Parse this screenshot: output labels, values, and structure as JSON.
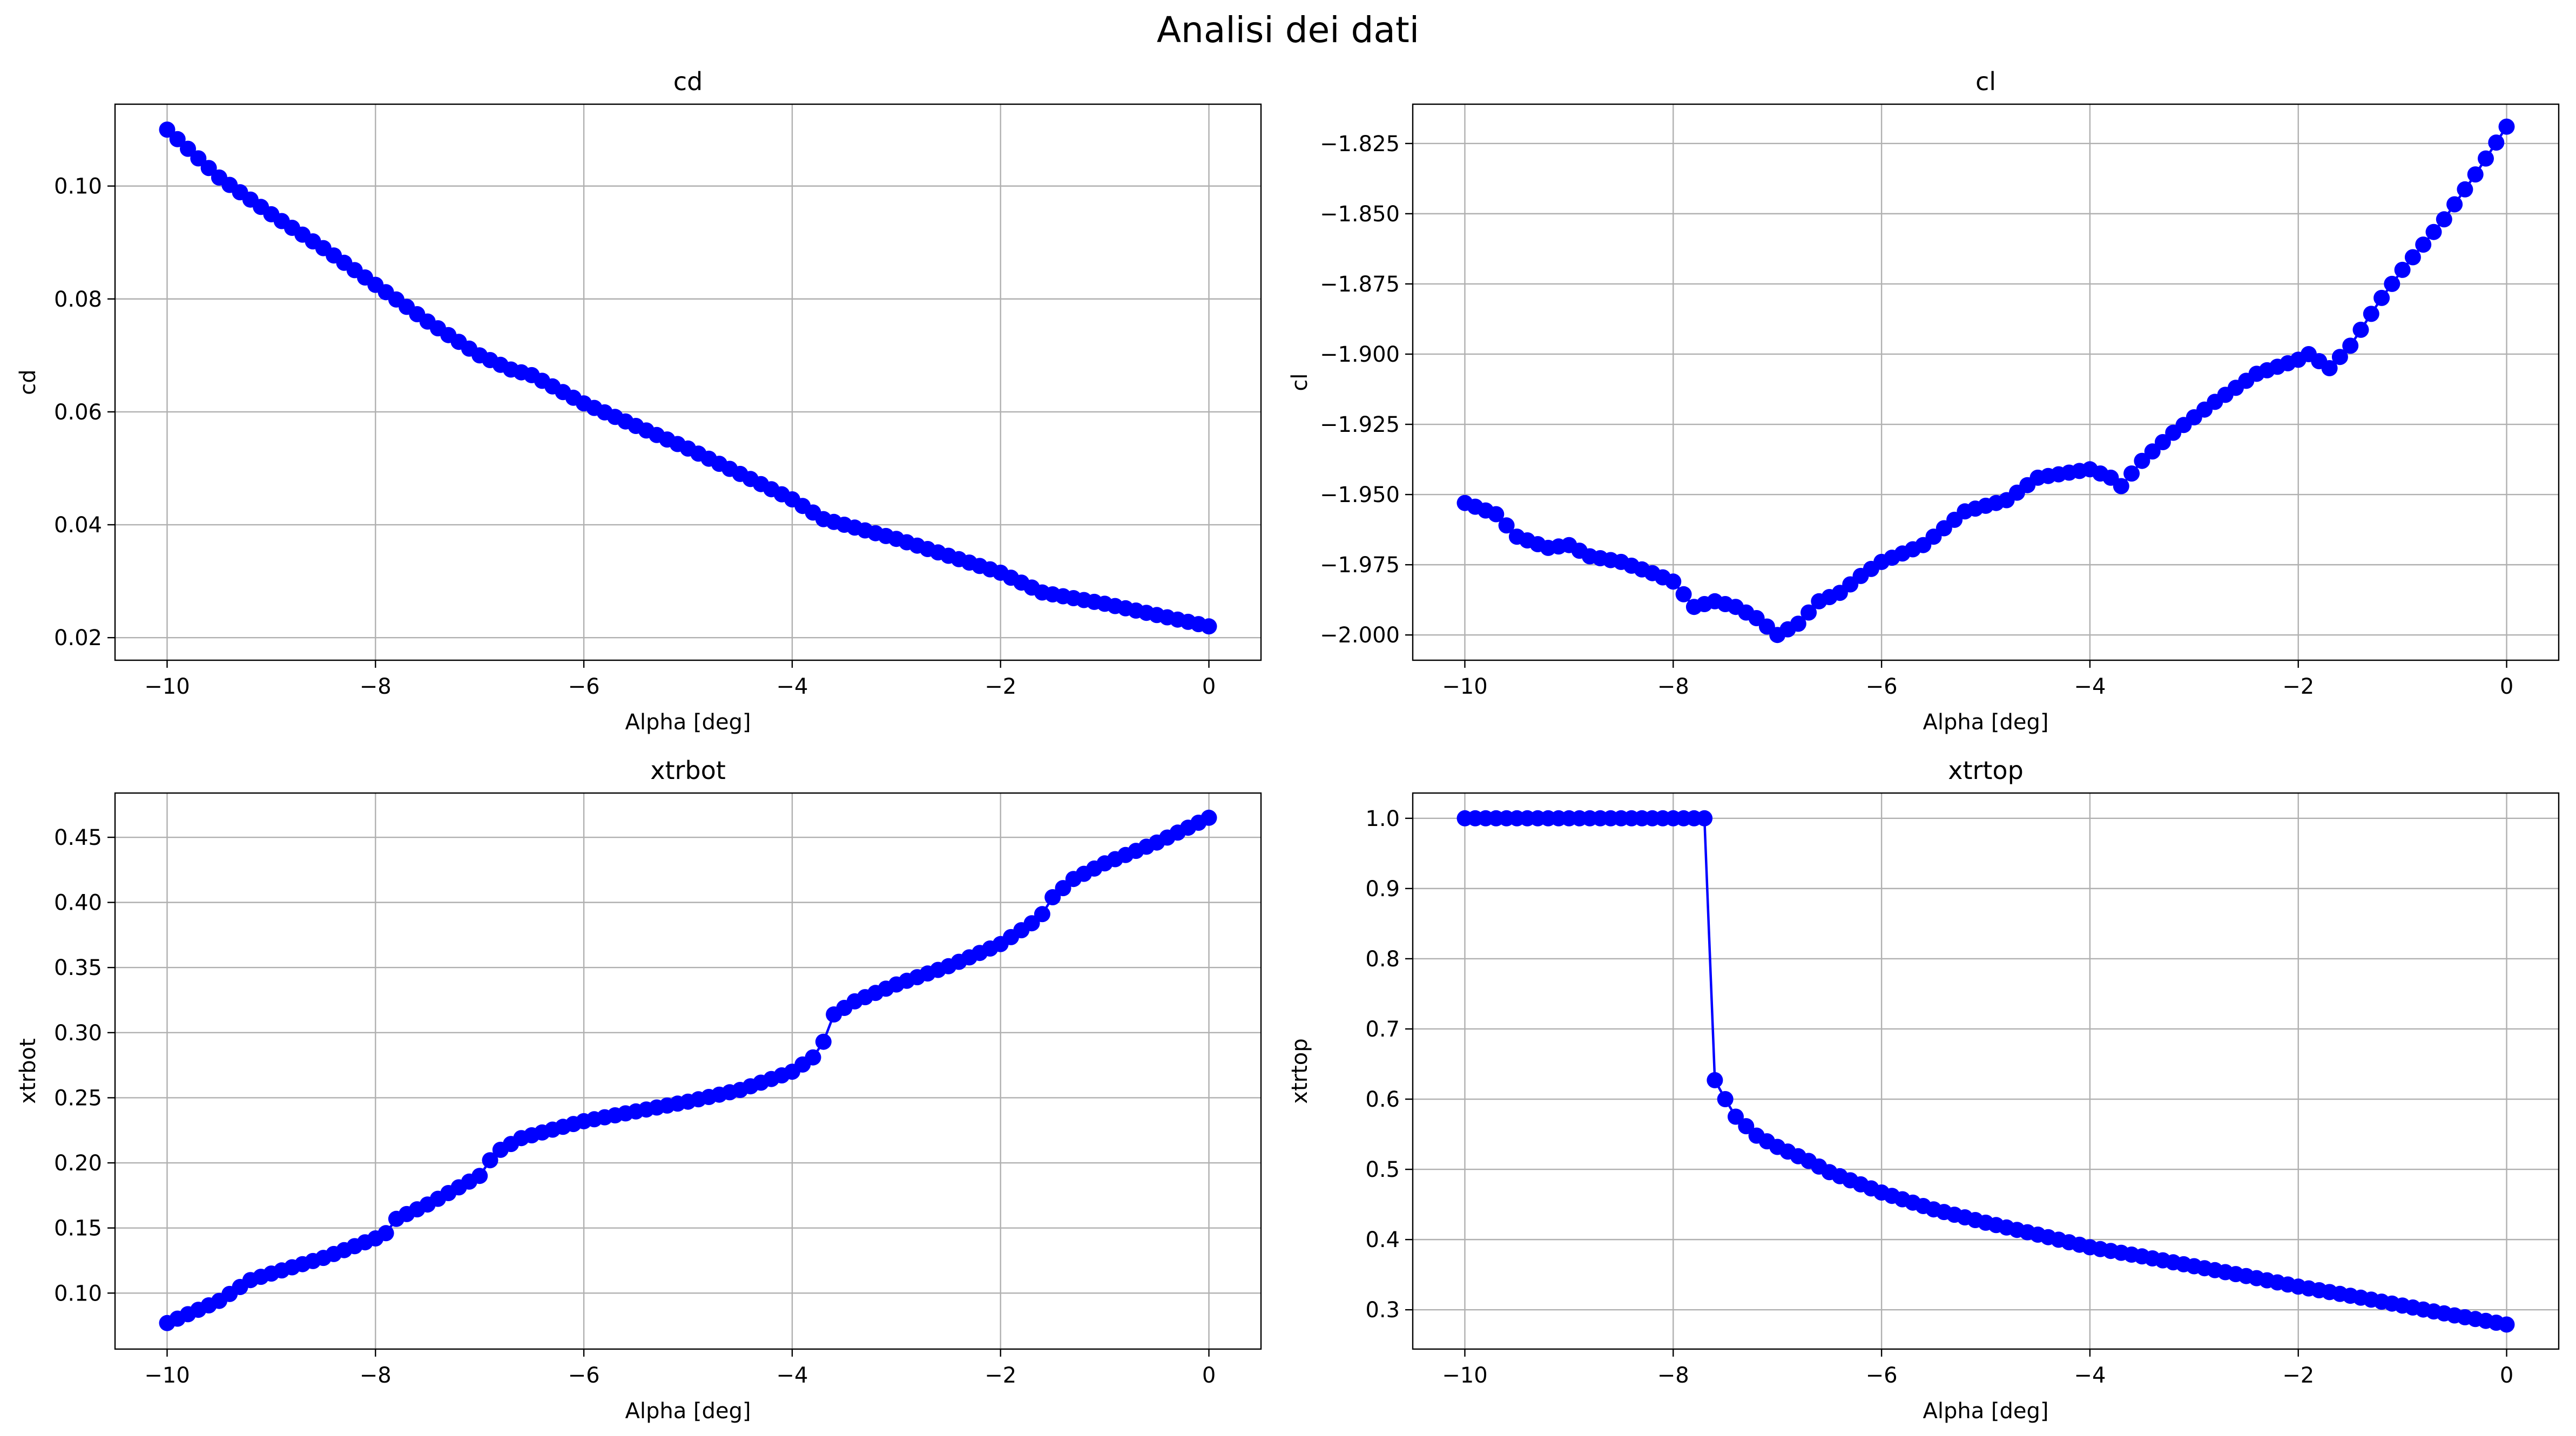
{
  "figure_title": "Analisi dei dati",
  "colors": {
    "series": "#0000ff",
    "grid": "#b0b0b0",
    "axes": "#000000"
  },
  "chart_data": [
    {
      "type": "line",
      "title": "cd",
      "xlabel": "Alpha [deg]",
      "ylabel": "cd",
      "grid": true,
      "marker": "circle",
      "xlim": [
        -10.5,
        0.5
      ],
      "ylim": [
        0.016,
        0.1145
      ],
      "x_ticks": [
        -10,
        -8,
        -6,
        -4,
        -2,
        0
      ],
      "y_ticks": [
        0.02,
        0.04,
        0.06,
        0.08,
        0.1
      ],
      "x_tick_labels": [
        "−10",
        "−8",
        "−6",
        "−4",
        "−2",
        "0"
      ],
      "y_tick_labels": [
        "0.02",
        "0.04",
        "0.06",
        "0.08",
        "0.10"
      ],
      "anchors": [
        [
          -10,
          0.11
        ],
        [
          -9.5,
          0.1015
        ],
        [
          -9,
          0.095
        ],
        [
          -8.5,
          0.089
        ],
        [
          -8,
          0.0825
        ],
        [
          -7.5,
          0.076
        ],
        [
          -7,
          0.07
        ],
        [
          -6.7,
          0.0675
        ],
        [
          -6.5,
          0.0665
        ],
        [
          -6,
          0.0615
        ],
        [
          -5.5,
          0.0575
        ],
        [
          -5,
          0.0535
        ],
        [
          -4.5,
          0.049
        ],
        [
          -4,
          0.0445
        ],
        [
          -3.7,
          0.041
        ],
        [
          -3,
          0.0375
        ],
        [
          -2.5,
          0.0345
        ],
        [
          -2,
          0.0315
        ],
        [
          -1.6,
          0.028
        ],
        [
          -1,
          0.026
        ],
        [
          -0.5,
          0.024
        ],
        [
          0,
          0.022
        ]
      ]
    },
    {
      "type": "line",
      "title": "cl",
      "xlabel": "Alpha [deg]",
      "ylabel": "cl",
      "grid": true,
      "marker": "circle",
      "xlim": [
        -10.5,
        0.5
      ],
      "ylim": [
        -2.009,
        -1.811
      ],
      "x_ticks": [
        -10,
        -8,
        -6,
        -4,
        -2,
        0
      ],
      "y_ticks": [
        -2.0,
        -1.975,
        -1.95,
        -1.925,
        -1.9,
        -1.875,
        -1.85,
        -1.825
      ],
      "x_tick_labels": [
        "−10",
        "−8",
        "−6",
        "−4",
        "−2",
        "0"
      ],
      "y_tick_labels": [
        "−2.000",
        "−1.975",
        "−1.950",
        "−1.925",
        "−1.900",
        "−1.875",
        "−1.850",
        "−1.825"
      ],
      "anchors": [
        [
          -10,
          -1.953
        ],
        [
          -9.7,
          -1.957
        ],
        [
          -9.5,
          -1.965
        ],
        [
          -9.2,
          -1.969
        ],
        [
          -9.0,
          -1.968
        ],
        [
          -8.8,
          -1.972
        ],
        [
          -8.5,
          -1.974
        ],
        [
          -8.2,
          -1.978
        ],
        [
          -8.0,
          -1.981
        ],
        [
          -7.8,
          -1.99
        ],
        [
          -7.6,
          -1.988
        ],
        [
          -7.4,
          -1.99
        ],
        [
          -7.2,
          -1.994
        ],
        [
          -7.0,
          -2.0
        ],
        [
          -6.8,
          -1.996
        ],
        [
          -6.6,
          -1.988
        ],
        [
          -6.4,
          -1.985
        ],
        [
          -6.2,
          -1.979
        ],
        [
          -6.0,
          -1.974
        ],
        [
          -5.6,
          -1.968
        ],
        [
          -5.2,
          -1.956
        ],
        [
          -4.8,
          -1.952
        ],
        [
          -4.5,
          -1.944
        ],
        [
          -4.0,
          -1.941
        ],
        [
          -3.8,
          -1.944
        ],
        [
          -3.7,
          -1.947
        ],
        [
          -3.5,
          -1.938
        ],
        [
          -3.2,
          -1.928
        ],
        [
          -2.8,
          -1.917
        ],
        [
          -2.4,
          -1.907
        ],
        [
          -2.0,
          -1.902
        ],
        [
          -1.9,
          -1.9
        ],
        [
          -1.7,
          -1.905
        ],
        [
          -1.5,
          -1.897
        ],
        [
          -1.2,
          -1.88
        ],
        [
          -1.0,
          -1.87
        ],
        [
          -0.6,
          -1.852
        ],
        [
          -0.3,
          -1.836
        ],
        [
          0.0,
          -1.819
        ]
      ]
    },
    {
      "type": "line",
      "title": "xtrbot",
      "xlabel": "Alpha [deg]",
      "ylabel": "xtrbot",
      "grid": true,
      "marker": "circle",
      "xlim": [
        -10.5,
        0.5
      ],
      "ylim": [
        0.057,
        0.484
      ],
      "x_ticks": [
        -10,
        -8,
        -6,
        -4,
        -2,
        0
      ],
      "y_ticks": [
        0.1,
        0.15,
        0.2,
        0.25,
        0.3,
        0.35,
        0.4,
        0.45
      ],
      "x_tick_labels": [
        "−10",
        "−8",
        "−6",
        "−4",
        "−2",
        "0"
      ],
      "y_tick_labels": [
        "0.10",
        "0.15",
        "0.20",
        "0.25",
        "0.30",
        "0.35",
        "0.40",
        "0.45"
      ],
      "anchors": [
        [
          -10,
          0.077
        ],
        [
          -9.5,
          0.094
        ],
        [
          -9.2,
          0.11
        ],
        [
          -9,
          0.115
        ],
        [
          -8.5,
          0.127
        ],
        [
          -8,
          0.142
        ],
        [
          -7.9,
          0.146
        ],
        [
          -7.8,
          0.157
        ],
        [
          -7.5,
          0.168
        ],
        [
          -7,
          0.19
        ],
        [
          -6.9,
          0.202
        ],
        [
          -6.8,
          0.21
        ],
        [
          -6.6,
          0.219
        ],
        [
          -6,
          0.232
        ],
        [
          -5,
          0.247
        ],
        [
          -4.5,
          0.256
        ],
        [
          -4,
          0.27
        ],
        [
          -3.8,
          0.281
        ],
        [
          -3.7,
          0.293
        ],
        [
          -3.6,
          0.314
        ],
        [
          -3.4,
          0.324
        ],
        [
          -3,
          0.337
        ],
        [
          -2.5,
          0.351
        ],
        [
          -2,
          0.368
        ],
        [
          -1.7,
          0.384
        ],
        [
          -1.6,
          0.391
        ],
        [
          -1.5,
          0.404
        ],
        [
          -1.3,
          0.418
        ],
        [
          -1,
          0.43
        ],
        [
          -0.5,
          0.446
        ],
        [
          0,
          0.465
        ]
      ]
    },
    {
      "type": "line",
      "title": "xtrtop",
      "xlabel": "Alpha [deg]",
      "ylabel": "xtrtop",
      "grid": true,
      "marker": "circle",
      "xlim": [
        -10.5,
        0.5
      ],
      "ylim": [
        0.244,
        1.036
      ],
      "x_ticks": [
        -10,
        -8,
        -6,
        -4,
        -2,
        0
      ],
      "y_ticks": [
        0.3,
        0.4,
        0.5,
        0.6,
        0.7,
        0.8,
        0.9,
        1.0
      ],
      "x_tick_labels": [
        "−10",
        "−8",
        "−6",
        "−4",
        "−2",
        "0"
      ],
      "y_tick_labels": [
        "0.3",
        "0.4",
        "0.5",
        "0.6",
        "0.7",
        "0.8",
        "0.9",
        "1.0"
      ],
      "anchors": [
        [
          -10,
          1.0
        ],
        [
          -7.7,
          1.0
        ],
        [
          -7.6,
          0.627
        ],
        [
          -7.5,
          0.6
        ],
        [
          -7.4,
          0.575
        ],
        [
          -7.2,
          0.548
        ],
        [
          -7,
          0.532
        ],
        [
          -6.7,
          0.512
        ],
        [
          -6.5,
          0.496
        ],
        [
          -6,
          0.467
        ],
        [
          -5.5,
          0.443
        ],
        [
          -5,
          0.424
        ],
        [
          -4.5,
          0.407
        ],
        [
          -4,
          0.389
        ],
        [
          -3.5,
          0.376
        ],
        [
          -3,
          0.362
        ],
        [
          -2.5,
          0.348
        ],
        [
          -2,
          0.333
        ],
        [
          -1.5,
          0.32
        ],
        [
          -1,
          0.306
        ],
        [
          -0.5,
          0.292
        ],
        [
          0,
          0.279
        ]
      ]
    }
  ]
}
